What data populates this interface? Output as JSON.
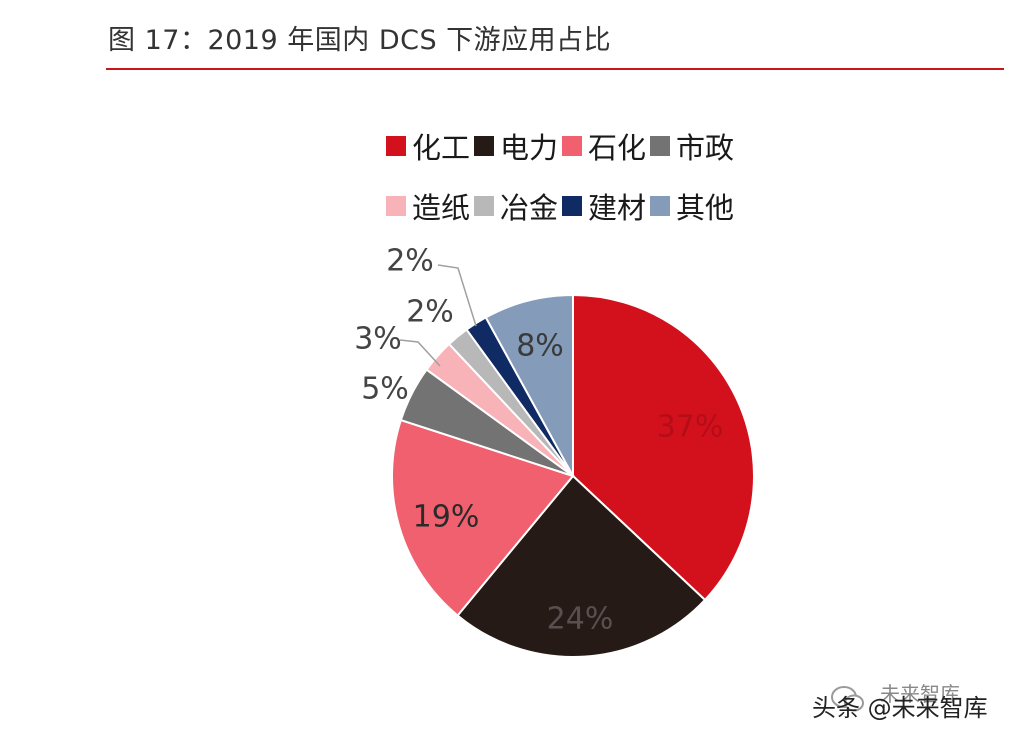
{
  "figure": {
    "title": "图 17：2019 年国内 DCS 下游应用占比"
  },
  "chart_data": {
    "type": "pie",
    "title": "图 17：2019 年国内 DCS 下游应用占比",
    "legend_position": "top",
    "slices": [
      {
        "name": "化工",
        "value": 37,
        "label": "37%",
        "color": "#d2111c"
      },
      {
        "name": "电力",
        "value": 24,
        "label": "24%",
        "color": "#261a16"
      },
      {
        "name": "石化",
        "value": 19,
        "label": "19%",
        "color": "#f0606e"
      },
      {
        "name": "市政",
        "value": 5,
        "label": "5%",
        "color": "#737373"
      },
      {
        "name": "造纸",
        "value": 3,
        "label": "3%",
        "color": "#f7b3b8"
      },
      {
        "name": "冶金",
        "value": 2,
        "label": "2%",
        "color": "#b8b8b8"
      },
      {
        "name": "建材",
        "value": 2,
        "label": "2%",
        "color": "#102a63"
      },
      {
        "name": "其他",
        "value": 8,
        "label": "8%",
        "color": "#849bb9"
      }
    ]
  },
  "watermark": {
    "text": "头条 @未来智库",
    "text_secondary": "未来智库"
  }
}
